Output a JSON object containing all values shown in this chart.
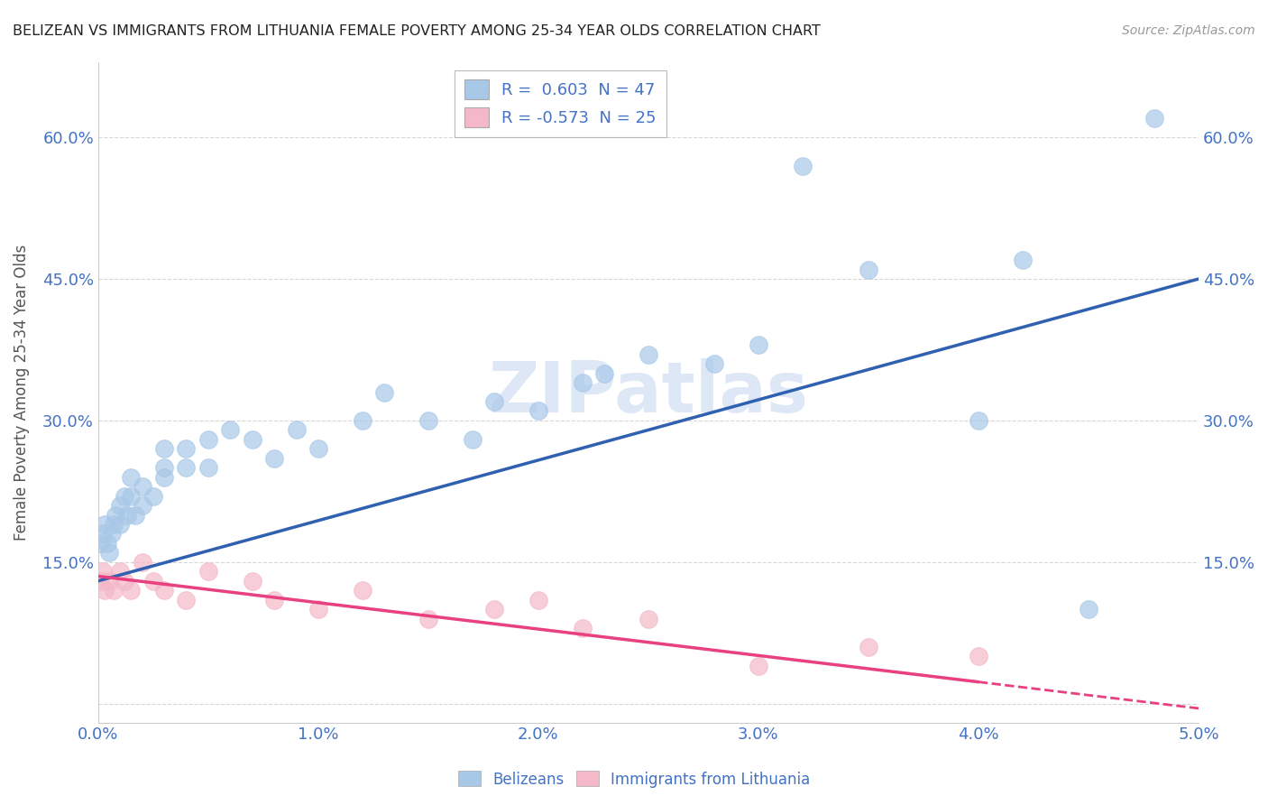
{
  "title": "BELIZEAN VS IMMIGRANTS FROM LITHUANIA FEMALE POVERTY AMONG 25-34 YEAR OLDS CORRELATION CHART",
  "source": "Source: ZipAtlas.com",
  "ylabel": "Female Poverty Among 25-34 Year Olds",
  "xlim": [
    0.0,
    0.05
  ],
  "ylim": [
    -0.02,
    0.68
  ],
  "yticks": [
    0.0,
    0.15,
    0.3,
    0.45,
    0.6
  ],
  "ytick_labels": [
    "",
    "15.0%",
    "30.0%",
    "45.0%",
    "60.0%"
  ],
  "xticks": [
    0.0,
    0.01,
    0.02,
    0.03,
    0.04,
    0.05
  ],
  "xtick_labels": [
    "0.0%",
    "1.0%",
    "2.0%",
    "3.0%",
    "4.0%",
    "5.0%"
  ],
  "color_blue": "#a8c8e8",
  "color_pink": "#f4b8c8",
  "color_line_blue": "#3060b0",
  "color_line_pink": "#e84080",
  "color_text": "#4472c4",
  "watermark": "ZIPatlas",
  "legend_R1": "R =  0.603",
  "legend_N1": "N = 47",
  "legend_R2": "R = -0.573",
  "legend_N2": "N = 25",
  "blue_intercept": 0.13,
  "blue_slope": 6.4,
  "pink_intercept": 0.135,
  "pink_slope": -2.8,
  "belizean_x": [
    0.0001,
    0.0002,
    0.0003,
    0.0004,
    0.0005,
    0.0006,
    0.0007,
    0.0008,
    0.001,
    0.001,
    0.0012,
    0.0013,
    0.0015,
    0.0015,
    0.0017,
    0.002,
    0.002,
    0.0025,
    0.003,
    0.003,
    0.003,
    0.004,
    0.004,
    0.005,
    0.005,
    0.006,
    0.007,
    0.008,
    0.009,
    0.01,
    0.012,
    0.013,
    0.015,
    0.017,
    0.018,
    0.02,
    0.022,
    0.023,
    0.025,
    0.028,
    0.03,
    0.032,
    0.035,
    0.04,
    0.042,
    0.045,
    0.048
  ],
  "belizean_y": [
    0.17,
    0.18,
    0.19,
    0.17,
    0.16,
    0.18,
    0.19,
    0.2,
    0.21,
    0.19,
    0.22,
    0.2,
    0.22,
    0.24,
    0.2,
    0.21,
    0.23,
    0.22,
    0.24,
    0.25,
    0.27,
    0.25,
    0.27,
    0.25,
    0.28,
    0.29,
    0.28,
    0.26,
    0.29,
    0.27,
    0.3,
    0.33,
    0.3,
    0.28,
    0.32,
    0.31,
    0.34,
    0.35,
    0.37,
    0.36,
    0.38,
    0.57,
    0.46,
    0.3,
    0.47,
    0.1,
    0.62
  ],
  "lithuania_x": [
    0.0001,
    0.0002,
    0.0003,
    0.0005,
    0.0007,
    0.001,
    0.0012,
    0.0015,
    0.002,
    0.0025,
    0.003,
    0.004,
    0.005,
    0.007,
    0.008,
    0.01,
    0.012,
    0.015,
    0.018,
    0.02,
    0.022,
    0.025,
    0.03,
    0.035,
    0.04
  ],
  "lithuania_y": [
    0.13,
    0.14,
    0.12,
    0.13,
    0.12,
    0.14,
    0.13,
    0.12,
    0.15,
    0.13,
    0.12,
    0.11,
    0.14,
    0.13,
    0.11,
    0.1,
    0.12,
    0.09,
    0.1,
    0.11,
    0.08,
    0.09,
    0.04,
    0.06,
    0.05
  ],
  "background_color": "#ffffff",
  "grid_color": "#cccccc"
}
